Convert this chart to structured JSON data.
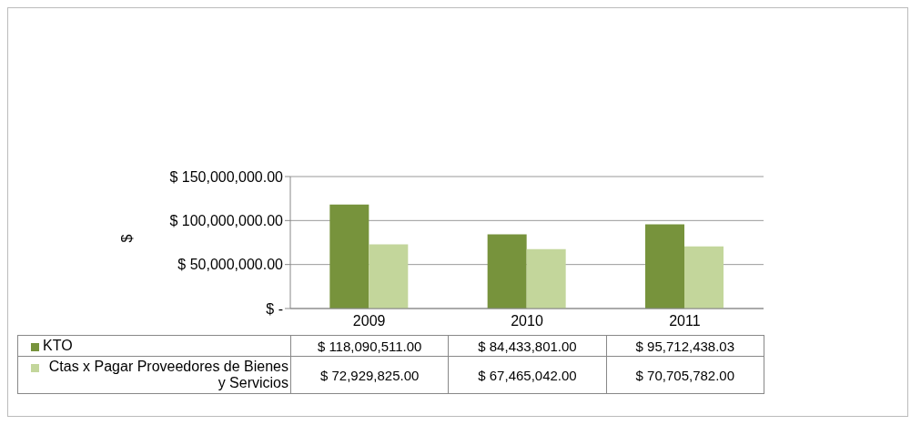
{
  "chart_data": {
    "type": "bar",
    "ylabel": "$",
    "categories": [
      "2009",
      "2010",
      "2011"
    ],
    "series": [
      {
        "name": "KTO",
        "color": "#77933c",
        "values": [
          118090511.0,
          84433801.0,
          95712438.03
        ],
        "value_labels": [
          "$ 118,090,511.00",
          "$ 84,433,801.00",
          "$ 95,712,438.03"
        ]
      },
      {
        "name": "Ctas x Pagar Proveedores de Bienes y Servicios",
        "color": "#c3d69b",
        "values": [
          72929825.0,
          67465042.0,
          70705782.0
        ],
        "value_labels": [
          "$ 72,929,825.00",
          "$ 67,465,042.00",
          "$ 70,705,782.00"
        ]
      }
    ],
    "ylim": [
      0,
      150000000
    ],
    "yticks": [
      {
        "value": 0,
        "label": "$ -"
      },
      {
        "value": 50000000,
        "label": "$ 50,000,000.00"
      },
      {
        "value": 100000000,
        "label": "$ 100,000,000.00"
      },
      {
        "value": 150000000,
        "label": "$ 150,000,000.00"
      }
    ],
    "grid": "y",
    "legend": "bottom"
  }
}
